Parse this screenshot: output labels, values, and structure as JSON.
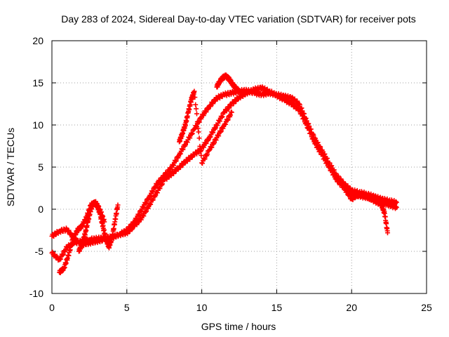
{
  "chart_data": {
    "type": "scatter",
    "title": "Day 283 of 2024, Sidereal Day-to-day VTEC variation (SDTVAR) for receiver pots",
    "xlabel": "GPS time / hours",
    "ylabel": "SDTVAR / TECUs",
    "xlim": [
      0,
      25
    ],
    "ylim": [
      -10,
      20
    ],
    "xticks": [
      "0",
      "5",
      "10",
      "15",
      "20",
      "25"
    ],
    "yticks": [
      "-10",
      "-5",
      "0",
      "5",
      "10",
      "15",
      "20"
    ],
    "grid": true,
    "marker": "plus",
    "color": "#ff0000",
    "series": [
      {
        "name": "main",
        "x": [
          0.0,
          0.5,
          1.0,
          1.5,
          2.0,
          2.5,
          3.0,
          3.5,
          4.0,
          4.5,
          5.0,
          5.5,
          6.0,
          6.5,
          7.0,
          7.5,
          8.0,
          8.5,
          9.0,
          9.5,
          10.0,
          10.5,
          11.0,
          11.5,
          12.0,
          12.5,
          13.0,
          13.5,
          14.0,
          14.5,
          15.0,
          15.5,
          16.0,
          16.5,
          17.0,
          17.5,
          18.0,
          18.5,
          19.0,
          19.5,
          20.0,
          20.5,
          21.0,
          21.5,
          22.0,
          22.5,
          23.0
        ],
        "y": [
          -3.2,
          -2.6,
          -2.4,
          -3.5,
          -4.2,
          -4.0,
          -3.8,
          -3.6,
          -3.4,
          -3.0,
          -2.5,
          -1.5,
          0.0,
          1.5,
          3.0,
          4.0,
          5.0,
          6.5,
          8.0,
          9.5,
          11.0,
          12.2,
          13.2,
          13.6,
          13.8,
          14.0,
          14.1,
          13.8,
          13.6,
          13.8,
          13.6,
          13.4,
          13.2,
          12.5,
          10.5,
          8.5,
          7.0,
          5.5,
          4.0,
          3.0,
          2.2,
          2.0,
          1.8,
          1.5,
          1.2,
          1.0,
          0.8
        ]
      },
      {
        "name": "secondary",
        "x": [
          0.0,
          0.5,
          1.0,
          1.5,
          2.0,
          2.5,
          3.0,
          3.5,
          4.0,
          4.5,
          5.0,
          5.5,
          6.0,
          6.5,
          7.0,
          7.5,
          8.0,
          8.5,
          9.0,
          9.5,
          10.0,
          10.5,
          11.0,
          11.5,
          12.0,
          12.5,
          13.0,
          13.5,
          14.0,
          14.5,
          15.0,
          15.5,
          16.0,
          16.5,
          17.0,
          17.5,
          18.0,
          18.5,
          19.0,
          19.5,
          20.0,
          20.5,
          21.0,
          21.5,
          22.0,
          22.5,
          23.0
        ],
        "y": [
          -5.2,
          -6.0,
          -4.5,
          -4.0,
          -3.8,
          -3.6,
          -3.5,
          -3.4,
          -3.3,
          -3.0,
          -2.8,
          -2.0,
          -1.0,
          0.5,
          2.0,
          3.5,
          4.2,
          5.0,
          5.8,
          6.5,
          7.2,
          8.5,
          10.0,
          11.5,
          12.5,
          13.3,
          13.8,
          14.2,
          14.4,
          14.0,
          13.5,
          13.0,
          12.5,
          11.8,
          10.0,
          8.0,
          6.5,
          5.0,
          3.5,
          2.5,
          1.8,
          1.6,
          1.4,
          1.2,
          0.8,
          0.5,
          0.2
        ]
      },
      {
        "name": "loop-a",
        "x": [
          0.5,
          0.8,
          1.1,
          1.4,
          1.7,
          2.0,
          2.3,
          2.6,
          2.9,
          3.2,
          3.5
        ],
        "y": [
          -7.5,
          -7.0,
          -5.5,
          -3.5,
          -2.5,
          -2.0,
          -1.0,
          0.5,
          0.8,
          0.0,
          -1.5
        ]
      },
      {
        "name": "loop-b",
        "x": [
          1.8,
          2.0,
          2.2,
          2.4,
          2.6,
          2.8,
          3.0,
          3.2,
          3.4,
          3.6,
          3.8,
          4.0,
          4.2,
          4.4
        ],
        "y": [
          -5.0,
          -4.2,
          -3.0,
          -1.5,
          0.0,
          0.8,
          0.5,
          -0.5,
          -2.0,
          -3.5,
          -4.5,
          -3.5,
          -1.5,
          0.5
        ]
      },
      {
        "name": "branch-c",
        "x": [
          8.5,
          8.7,
          8.9,
          9.1,
          9.3,
          9.5,
          10.0,
          10.5,
          11.0,
          11.5,
          12.0
        ],
        "y": [
          8.0,
          9.0,
          10.0,
          11.5,
          13.0,
          14.0,
          5.5,
          7.0,
          8.5,
          10.0,
          11.5
        ]
      },
      {
        "name": "branch-d",
        "x": [
          11.0,
          11.2,
          11.4,
          11.6,
          11.8,
          12.0,
          12.2,
          12.5
        ],
        "y": [
          14.5,
          15.2,
          15.6,
          15.8,
          15.5,
          15.0,
          14.5,
          14.0
        ]
      },
      {
        "name": "tail-e",
        "x": [
          19.5,
          20.0,
          20.5,
          21.0,
          21.5,
          22.0,
          22.2,
          22.4
        ],
        "y": [
          2.5,
          1.2,
          1.8,
          1.5,
          1.0,
          0.5,
          -0.5,
          -2.8
        ]
      }
    ]
  }
}
